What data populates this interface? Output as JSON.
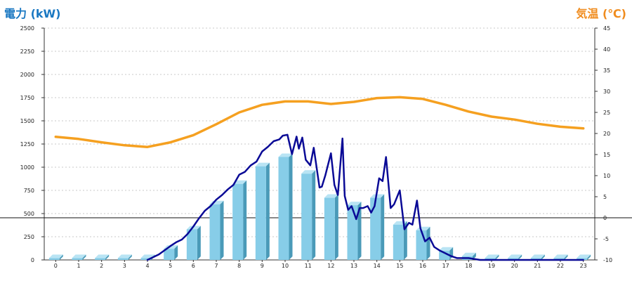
{
  "chart_data": {
    "type": "bar",
    "y1_title": "電力 (kW)",
    "y2_title": "気温 (℃)",
    "y1_lim": [
      0,
      2500
    ],
    "y1_ticks": [
      "0",
      "250",
      "500",
      "750",
      "1000",
      "1250",
      "1500",
      "1750",
      "2000",
      "2250",
      "2500"
    ],
    "y2_lim": [
      -10,
      45
    ],
    "y2_ticks": [
      "-10",
      "-5",
      "0",
      "5",
      "10",
      "15",
      "20",
      "25",
      "30",
      "35",
      "40",
      "45"
    ],
    "categories": [
      "0",
      "1",
      "2",
      "3",
      "4",
      "5",
      "6",
      "7",
      "8",
      "9",
      "10",
      "11",
      "12",
      "13",
      "14",
      "15",
      "16",
      "17",
      "18",
      "19",
      "20",
      "21",
      "22",
      "23"
    ],
    "series": [
      {
        "kind": "bar",
        "axis": "y1",
        "color": "#87cde8",
        "values": [
          20,
          20,
          20,
          20,
          20,
          120,
          330,
          600,
          820,
          1010,
          1110,
          930,
          670,
          590,
          670,
          380,
          320,
          100,
          40,
          20,
          20,
          20,
          20,
          20
        ]
      },
      {
        "kind": "line",
        "axis": "y1",
        "color": "#0a0a96",
        "x": [
          4.0,
          4.5,
          5.0,
          5.25,
          5.5,
          5.75,
          6.0,
          6.25,
          6.5,
          6.75,
          7.0,
          7.25,
          7.5,
          7.75,
          8.0,
          8.25,
          8.5,
          8.75,
          9.0,
          9.25,
          9.5,
          9.75,
          9.9,
          10.1,
          10.3,
          10.5,
          10.6,
          10.75,
          10.9,
          11.1,
          11.25,
          11.5,
          11.6,
          11.75,
          12.0,
          12.15,
          12.3,
          12.5,
          12.6,
          12.75,
          12.9,
          13.1,
          13.25,
          13.4,
          13.6,
          13.75,
          13.9,
          14.1,
          14.25,
          14.4,
          14.6,
          14.75,
          15.0,
          15.2,
          15.4,
          15.55,
          15.75,
          15.9,
          16.1,
          16.3,
          16.5,
          16.75,
          17.0,
          17.25,
          17.5,
          17.75,
          18.0,
          18.5,
          19.0,
          20.0,
          21.0,
          22.0,
          23.0
        ],
        "y": [
          0,
          60,
          150,
          190,
          220,
          280,
          360,
          450,
          530,
          580,
          650,
          700,
          760,
          810,
          920,
          950,
          1020,
          1060,
          1170,
          1220,
          1280,
          1300,
          1340,
          1350,
          1140,
          1330,
          1200,
          1320,
          1080,
          1020,
          1210,
          780,
          790,
          910,
          1150,
          810,
          700,
          1310,
          690,
          540,
          580,
          440,
          560,
          560,
          580,
          510,
          580,
          880,
          850,
          1110,
          560,
          600,
          750,
          330,
          400,
          380,
          640,
          340,
          200,
          240,
          140,
          100,
          70,
          40,
          20,
          20,
          20,
          0,
          0,
          0,
          0,
          0,
          0
        ]
      },
      {
        "kind": "line",
        "axis": "y2",
        "color": "#f5a020",
        "x": [
          0,
          1,
          2,
          3,
          4,
          5,
          6,
          7,
          8,
          9,
          10,
          11,
          12,
          13,
          14,
          15,
          16,
          17,
          18,
          19,
          20,
          21,
          22,
          23
        ],
        "y": [
          19.2,
          18.7,
          17.9,
          17.2,
          16.8,
          17.9,
          19.6,
          22.2,
          25.0,
          26.8,
          27.6,
          27.6,
          27.0,
          27.5,
          28.4,
          28.6,
          28.2,
          26.8,
          25.2,
          24.0,
          23.3,
          22.3,
          21.6,
          21.2
        ]
      }
    ]
  }
}
